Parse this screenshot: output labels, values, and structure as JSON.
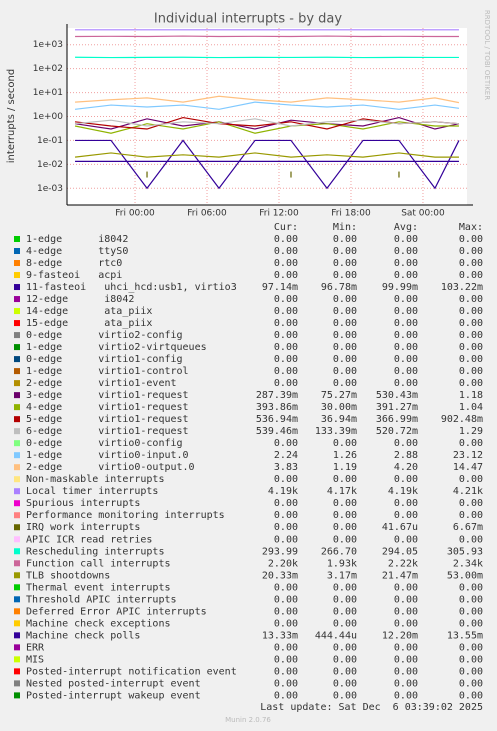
{
  "chart_data": {
    "type": "line",
    "title": "Individual interrupts - by day",
    "y_label": "interrupts / second",
    "side_note": "RRDTOOL / TOBI OETIKER",
    "ylog": true,
    "grid": true,
    "ylim": [
      0.0002,
      5000
    ],
    "yticks": [
      {
        "value": 1000,
        "label": "1e+03"
      },
      {
        "value": 100,
        "label": "1e+02"
      },
      {
        "value": 10,
        "label": "1e+01"
      },
      {
        "value": 1,
        "label": "1e+00"
      },
      {
        "value": 0.1,
        "label": "1e-01"
      },
      {
        "value": 0.01,
        "label": "1e-02"
      },
      {
        "value": 0.001,
        "label": "1e-03"
      }
    ],
    "xlim": [
      -5.67,
      27.67
    ],
    "xticks": [
      {
        "value": 0,
        "label": "Fri 00:00"
      },
      {
        "value": 6,
        "label": "Fri 06:00"
      },
      {
        "value": 12,
        "label": "Fri 12:00"
      },
      {
        "value": 18,
        "label": "Fri 18:00"
      },
      {
        "value": 24,
        "label": "Sat 00:00"
      }
    ],
    "x": [
      -5,
      -2,
      1,
      4,
      7,
      10,
      13,
      16,
      19,
      22,
      25,
      27
    ],
    "stat_headers": [
      "Cur:",
      "Min:",
      "Avg:",
      "Max:"
    ],
    "series": [
      {
        "name": "1-edge      i8042",
        "color": "#00CC00",
        "stats": [
          "0.00",
          "0.00",
          "0.00",
          "0.00"
        ]
      },
      {
        "name": "4-edge      ttyS0",
        "color": "#0066B3",
        "stats": [
          "0.00",
          "0.00",
          "0.00",
          "0.00"
        ]
      },
      {
        "name": "8-edge      rtc0",
        "color": "#FF8000",
        "stats": [
          "0.00",
          "0.00",
          "0.00",
          "0.00"
        ]
      },
      {
        "name": "9-fasteoi   acpi",
        "color": "#FFCC00",
        "stats": [
          "0.00",
          "0.00",
          "0.00",
          "0.00"
        ]
      },
      {
        "name": "11-fasteoi   uhci_hcd:usb1, virtio3",
        "color": "#330099",
        "stats": [
          "97.14m",
          "96.78m",
          "99.99m",
          "103.22m"
        ],
        "values": [
          0.1,
          0.1,
          0.001,
          0.1,
          0.001,
          0.1,
          0.1,
          0.001,
          0.1,
          0.1,
          0.001,
          0.1
        ]
      },
      {
        "name": "12-edge      i8042",
        "color": "#990099",
        "stats": [
          "0.00",
          "0.00",
          "0.00",
          "0.00"
        ]
      },
      {
        "name": "14-edge      ata_piix",
        "color": "#CCFF00",
        "stats": [
          "0.00",
          "0.00",
          "0.00",
          "0.00"
        ]
      },
      {
        "name": "15-edge      ata_piix",
        "color": "#FF0000",
        "stats": [
          "0.00",
          "0.00",
          "0.00",
          "0.00"
        ]
      },
      {
        "name": "0-edge      virtio2-config",
        "color": "#808080",
        "stats": [
          "0.00",
          "0.00",
          "0.00",
          "0.00"
        ]
      },
      {
        "name": "1-edge      virtio2-virtqueues",
        "color": "#008F00",
        "stats": [
          "0.00",
          "0.00",
          "0.00",
          "0.00"
        ]
      },
      {
        "name": "0-edge      virtio1-config",
        "color": "#00487D",
        "stats": [
          "0.00",
          "0.00",
          "0.00",
          "0.00"
        ]
      },
      {
        "name": "1-edge      virtio1-control",
        "color": "#B35A00",
        "stats": [
          "0.00",
          "0.00",
          "0.00",
          "0.00"
        ]
      },
      {
        "name": "2-edge      virtio1-event",
        "color": "#B38F00",
        "stats": [
          "0.00",
          "0.00",
          "0.00",
          "0.00"
        ]
      },
      {
        "name": "3-edge      virtio1-request",
        "color": "#6B006B",
        "stats": [
          "287.39m",
          "75.27m",
          "530.43m",
          "1.18"
        ],
        "values": [
          0.5,
          0.3,
          0.8,
          0.4,
          0.6,
          0.3,
          0.7,
          0.5,
          0.4,
          0.9,
          0.3,
          0.5
        ]
      },
      {
        "name": "4-edge      virtio1-request",
        "color": "#8FB300",
        "stats": [
          "393.86m",
          "30.00m",
          "391.27m",
          "1.04"
        ],
        "values": [
          0.4,
          0.2,
          0.5,
          0.3,
          0.6,
          0.2,
          0.4,
          0.5,
          0.3,
          0.6,
          0.4,
          0.4
        ]
      },
      {
        "name": "5-edge      virtio1-request",
        "color": "#B30000",
        "stats": [
          "536.94m",
          "36.94m",
          "366.99m",
          "902.48m"
        ],
        "values": [
          0.6,
          0.4,
          0.3,
          0.9,
          0.5,
          0.4,
          0.6,
          0.3,
          0.8,
          0.5,
          0.6,
          0.5
        ]
      },
      {
        "name": "6-edge      virtio1-request",
        "color": "#BEBEBE",
        "stats": [
          "539.46m",
          "133.39m",
          "520.72m",
          "1.29"
        ],
        "values": [
          0.5,
          0.7,
          0.4,
          0.6,
          0.5,
          0.8,
          0.4,
          0.6,
          0.7,
          0.5,
          0.6,
          0.5
        ]
      },
      {
        "name": "0-edge      virtio0-config",
        "color": "#80FF80",
        "stats": [
          "0.00",
          "0.00",
          "0.00",
          "0.00"
        ]
      },
      {
        "name": "1-edge      virtio0-input.0",
        "color": "#80C9FF",
        "stats": [
          "2.24",
          "1.26",
          "2.88",
          "23.12"
        ],
        "values": [
          2,
          3,
          2.5,
          3,
          2,
          4,
          3,
          2.5,
          3,
          2,
          3,
          2.2
        ]
      },
      {
        "name": "2-edge      virtio0-output.0",
        "color": "#FFC080",
        "stats": [
          "3.83",
          "1.19",
          "4.20",
          "14.47"
        ],
        "values": [
          4,
          5,
          6,
          4,
          7,
          5,
          4,
          6,
          5,
          4,
          6,
          3.8
        ]
      },
      {
        "name": "Non-maskable interrupts",
        "color": "#FFE680",
        "stats": [
          "0.00",
          "0.00",
          "0.00",
          "0.00"
        ]
      },
      {
        "name": "Local timer interrupts",
        "color": "#AA80FF",
        "stats": [
          "4.19k",
          "4.17k",
          "4.19k",
          "4.21k"
        ],
        "values": [
          4190,
          4200,
          4190,
          4190,
          4200,
          4190,
          4190,
          4200,
          4190,
          4190,
          4200,
          4190
        ]
      },
      {
        "name": "Spurious interrupts",
        "color": "#EE00CC",
        "stats": [
          "0.00",
          "0.00",
          "0.00",
          "0.00"
        ]
      },
      {
        "name": "Performance monitoring interrupts",
        "color": "#FF8080",
        "stats": [
          "0.00",
          "0.00",
          "0.00",
          "0.00"
        ]
      },
      {
        "name": "IRQ work interrupts",
        "color": "#666600",
        "stats": [
          "0.00",
          "0.00",
          "41.67u",
          "6.67m"
        ],
        "values": [
          null,
          null,
          0.005,
          null,
          null,
          null,
          0.005,
          null,
          null,
          0.005,
          null,
          null
        ]
      },
      {
        "name": "APIC ICR read retries",
        "color": "#FFBFFF",
        "stats": [
          "0.00",
          "0.00",
          "0.00",
          "0.00"
        ]
      },
      {
        "name": "Rescheduling interrupts",
        "color": "#00FFCC",
        "stats": [
          "293.99",
          "266.70",
          "294.05",
          "305.93"
        ],
        "values": [
          300,
          290,
          295,
          300,
          290,
          295,
          294,
          300,
          290,
          295,
          294,
          294
        ]
      },
      {
        "name": "Function call interrupts",
        "color": "#CC6699",
        "stats": [
          "2.20k",
          "1.93k",
          "2.22k",
          "2.34k"
        ],
        "values": [
          2200,
          2250,
          2200,
          2300,
          2200,
          2250,
          2200,
          2300,
          2200,
          2250,
          2200,
          2200
        ]
      },
      {
        "name": "TLB shootdowns",
        "color": "#999900",
        "stats": [
          "20.33m",
          "3.17m",
          "21.47m",
          "53.00m"
        ],
        "values": [
          0.02,
          0.03,
          0.02,
          0.025,
          0.02,
          0.03,
          0.02,
          0.025,
          0.02,
          0.03,
          0.02,
          0.02
        ]
      },
      {
        "name": "Thermal event interrupts",
        "color": "#00CC00",
        "stats": [
          "0.00",
          "0.00",
          "0.00",
          "0.00"
        ]
      },
      {
        "name": "Threshold APIC interrupts",
        "color": "#0066B3",
        "stats": [
          "0.00",
          "0.00",
          "0.00",
          "0.00"
        ]
      },
      {
        "name": "Deferred Error APIC interrupts",
        "color": "#FF8000",
        "stats": [
          "0.00",
          "0.00",
          "0.00",
          "0.00"
        ]
      },
      {
        "name": "Machine check exceptions",
        "color": "#FFCC00",
        "stats": [
          "0.00",
          "0.00",
          "0.00",
          "0.00"
        ]
      },
      {
        "name": "Machine check polls",
        "color": "#330099",
        "stats": [
          "13.33m",
          "444.44u",
          "12.20m",
          "13.55m"
        ],
        "values": [
          0.0133,
          0.0133,
          0.0133,
          0.0133,
          0.0133,
          0.0133,
          0.0133,
          0.0133,
          0.0133,
          0.0133,
          0.0133,
          0.0133
        ]
      },
      {
        "name": "ERR",
        "color": "#990099",
        "stats": [
          "0.00",
          "0.00",
          "0.00",
          "0.00"
        ]
      },
      {
        "name": "MIS",
        "color": "#CCFF00",
        "stats": [
          "0.00",
          "0.00",
          "0.00",
          "0.00"
        ]
      },
      {
        "name": "Posted-interrupt notification event",
        "color": "#FF0000",
        "stats": [
          "0.00",
          "0.00",
          "0.00",
          "0.00"
        ]
      },
      {
        "name": "Nested posted-interrupt event",
        "color": "#808080",
        "stats": [
          "0.00",
          "0.00",
          "0.00",
          "0.00"
        ]
      },
      {
        "name": "Posted-interrupt wakeup event",
        "color": "#008F00",
        "stats": [
          "0.00",
          "0.00",
          "0.00",
          "0.00"
        ]
      }
    ],
    "last_update": "Last update: Sat Dec  6 03:39:02 2025",
    "footer": "Munin 2.0.76"
  }
}
